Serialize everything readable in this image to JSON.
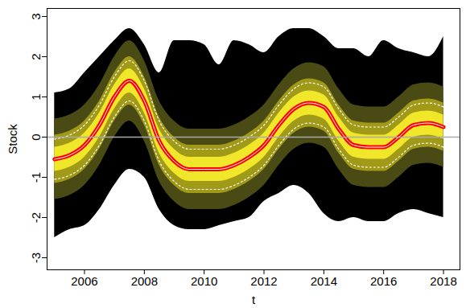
{
  "chart_data": {
    "type": "fan",
    "x_label": "t",
    "y_label": "Stock",
    "xlim": [
      2004.75,
      2018.55
    ],
    "xticks": [
      2006,
      2008,
      2010,
      2012,
      2014,
      2016,
      2018
    ],
    "ylim": [
      -3.3,
      3.2
    ],
    "yticks": [
      -3,
      -2,
      -1,
      0,
      1,
      2,
      3
    ],
    "grid": false,
    "x": [
      2005,
      2005.5,
      2006,
      2006.5,
      2007,
      2007.5,
      2008,
      2008.5,
      2009,
      2009.5,
      2010,
      2010.5,
      2011,
      2011.5,
      2012,
      2012.5,
      2013,
      2013.5,
      2014,
      2014.5,
      2015,
      2015.5,
      2016,
      2016.5,
      2017,
      2017.5,
      2018
    ],
    "bands": [
      {
        "color": "#000000",
        "upper": [
          1.1,
          1.2,
          1.6,
          2.0,
          2.4,
          2.7,
          2.3,
          1.6,
          2.4,
          2.4,
          2.3,
          1.8,
          2.4,
          2.3,
          2.1,
          2.5,
          2.7,
          2.7,
          2.5,
          2.2,
          2.2,
          2.0,
          2.4,
          2.2,
          2.1,
          2.0,
          2.5
        ],
        "lower": [
          -2.5,
          -2.3,
          -2.2,
          -1.8,
          -1.2,
          -0.8,
          -1.0,
          -1.8,
          -2.2,
          -2.3,
          -2.3,
          -2.2,
          -2.1,
          -2.0,
          -1.6,
          -1.4,
          -1.2,
          -1.4,
          -1.9,
          -2.1,
          -2.0,
          -2.1,
          -2.1,
          -1.9,
          -1.8,
          -1.9,
          -2.0
        ]
      },
      {
        "color": "#4a4a14",
        "upper": [
          0.45,
          0.55,
          0.8,
          1.3,
          2.0,
          2.4,
          1.9,
          0.9,
          0.4,
          0.2,
          0.2,
          0.2,
          0.3,
          0.5,
          0.8,
          1.3,
          1.7,
          1.85,
          1.75,
          1.2,
          0.8,
          0.75,
          0.75,
          1.0,
          1.3,
          1.35,
          1.25
        ],
        "lower": [
          -1.55,
          -1.45,
          -1.2,
          -0.7,
          0,
          0.4,
          -0.1,
          -1.1,
          -1.6,
          -1.8,
          -1.8,
          -1.8,
          -1.7,
          -1.5,
          -1.2,
          -0.7,
          -0.3,
          -0.15,
          -0.25,
          -0.8,
          -1.2,
          -1.25,
          -1.25,
          -1.0,
          -0.7,
          -0.65,
          -0.75
        ]
      },
      {
        "color": "#a09a18",
        "upper": [
          0.05,
          0.15,
          0.4,
          0.9,
          1.6,
          2.0,
          1.5,
          0.5,
          0.0,
          -0.2,
          -0.2,
          -0.2,
          -0.1,
          0.1,
          0.4,
          0.9,
          1.3,
          1.45,
          1.35,
          0.8,
          0.4,
          0.35,
          0.35,
          0.6,
          0.9,
          0.95,
          0.85
        ],
        "lower": [
          -1.15,
          -1.05,
          -0.8,
          -0.3,
          0.4,
          0.8,
          0.3,
          -0.7,
          -1.2,
          -1.4,
          -1.4,
          -1.4,
          -1.3,
          -1.1,
          -0.8,
          -0.3,
          0.1,
          0.25,
          0.15,
          -0.4,
          -0.8,
          -0.85,
          -0.85,
          -0.6,
          -0.3,
          -0.25,
          -0.35
        ]
      },
      {
        "color": "#f0e62a",
        "upper": [
          -0.25,
          -0.15,
          0.1,
          0.6,
          1.3,
          1.7,
          1.2,
          0.2,
          -0.3,
          -0.5,
          -0.5,
          -0.5,
          -0.4,
          -0.2,
          0.1,
          0.6,
          1.0,
          1.15,
          1.05,
          0.5,
          0.1,
          0.05,
          0.05,
          0.3,
          0.6,
          0.65,
          0.55
        ],
        "lower": [
          -0.85,
          -0.75,
          -0.5,
          0.0,
          0.7,
          1.1,
          0.6,
          -0.4,
          -0.9,
          -1.1,
          -1.1,
          -1.1,
          -1.0,
          -0.8,
          -0.5,
          0.0,
          0.4,
          0.55,
          0.45,
          -0.1,
          -0.5,
          -0.55,
          -0.55,
          -0.3,
          0.0,
          0.05,
          -0.05
        ]
      }
    ],
    "lines": [
      {
        "color": "#ffffff",
        "line_style": "dotted",
        "values": [
          -0.05,
          0.05,
          0.3,
          0.8,
          1.5,
          1.9,
          1.4,
          0.4,
          -0.1,
          -0.3,
          -0.3,
          -0.3,
          -0.2,
          0.0,
          0.3,
          0.8,
          1.2,
          1.35,
          1.25,
          0.7,
          0.3,
          0.25,
          0.25,
          0.5,
          0.8,
          0.85,
          0.75
        ]
      },
      {
        "color": "#ffffff",
        "line_style": "dotted",
        "values": [
          -1.05,
          -0.95,
          -0.7,
          -0.2,
          0.5,
          0.9,
          0.4,
          -0.6,
          -1.1,
          -1.3,
          -1.3,
          -1.3,
          -1.2,
          -1.0,
          -0.7,
          -0.2,
          0.2,
          0.35,
          0.25,
          -0.3,
          -0.7,
          -0.75,
          -0.75,
          -0.5,
          -0.2,
          -0.15,
          -0.25
        ]
      },
      {
        "color": "#ff0000",
        "line_style": "solid",
        "values": [
          -0.55,
          -0.45,
          -0.2,
          0.3,
          1.0,
          1.4,
          0.9,
          -0.1,
          -0.6,
          -0.8,
          -0.8,
          -0.8,
          -0.7,
          -0.5,
          -0.2,
          0.3,
          0.7,
          0.85,
          0.75,
          0.2,
          -0.2,
          -0.25,
          -0.25,
          0.0,
          0.3,
          0.35,
          0.25
        ]
      }
    ],
    "reference_line": {
      "value": 0,
      "color": "#aaaaaa"
    }
  }
}
